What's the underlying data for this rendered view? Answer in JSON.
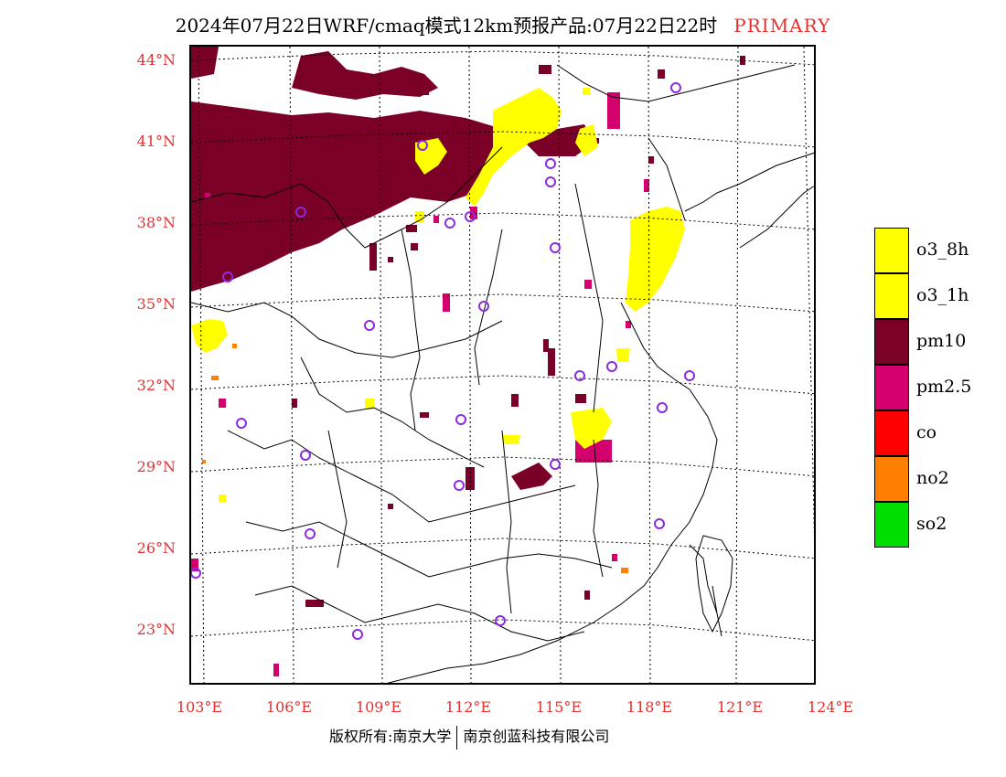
{
  "header": {
    "title": "2024年07月22日WRF/cmaq模式12km预报产品:07月22日22时",
    "tag": "PRIMARY"
  },
  "axes": {
    "lat_labels": [
      "44°N",
      "41°N",
      "38°N",
      "35°N",
      "32°N",
      "29°N",
      "26°N",
      "23°N"
    ],
    "lon_labels": [
      "103°E",
      "106°E",
      "109°E",
      "112°E",
      "115°E",
      "118°E",
      "121°E",
      "124°E"
    ]
  },
  "legend": {
    "items": [
      {
        "label": "o3_8h",
        "color": "#ffff00"
      },
      {
        "label": "o3_1h",
        "color": "#ffff00"
      },
      {
        "label": "pm10",
        "color": "#7a0028"
      },
      {
        "label": "pm2.5",
        "color": "#d4006e"
      },
      {
        "label": "co",
        "color": "#ff0000"
      },
      {
        "label": "no2",
        "color": "#ff7f00"
      },
      {
        "label": "so2",
        "color": "#00dd00"
      }
    ]
  },
  "footer": {
    "left": "版权所有:南京大学",
    "right": "南京创蓝科技有限公司"
  },
  "colors": {
    "axis_label": "#e53030",
    "station_marker": "#8a2be2"
  }
}
